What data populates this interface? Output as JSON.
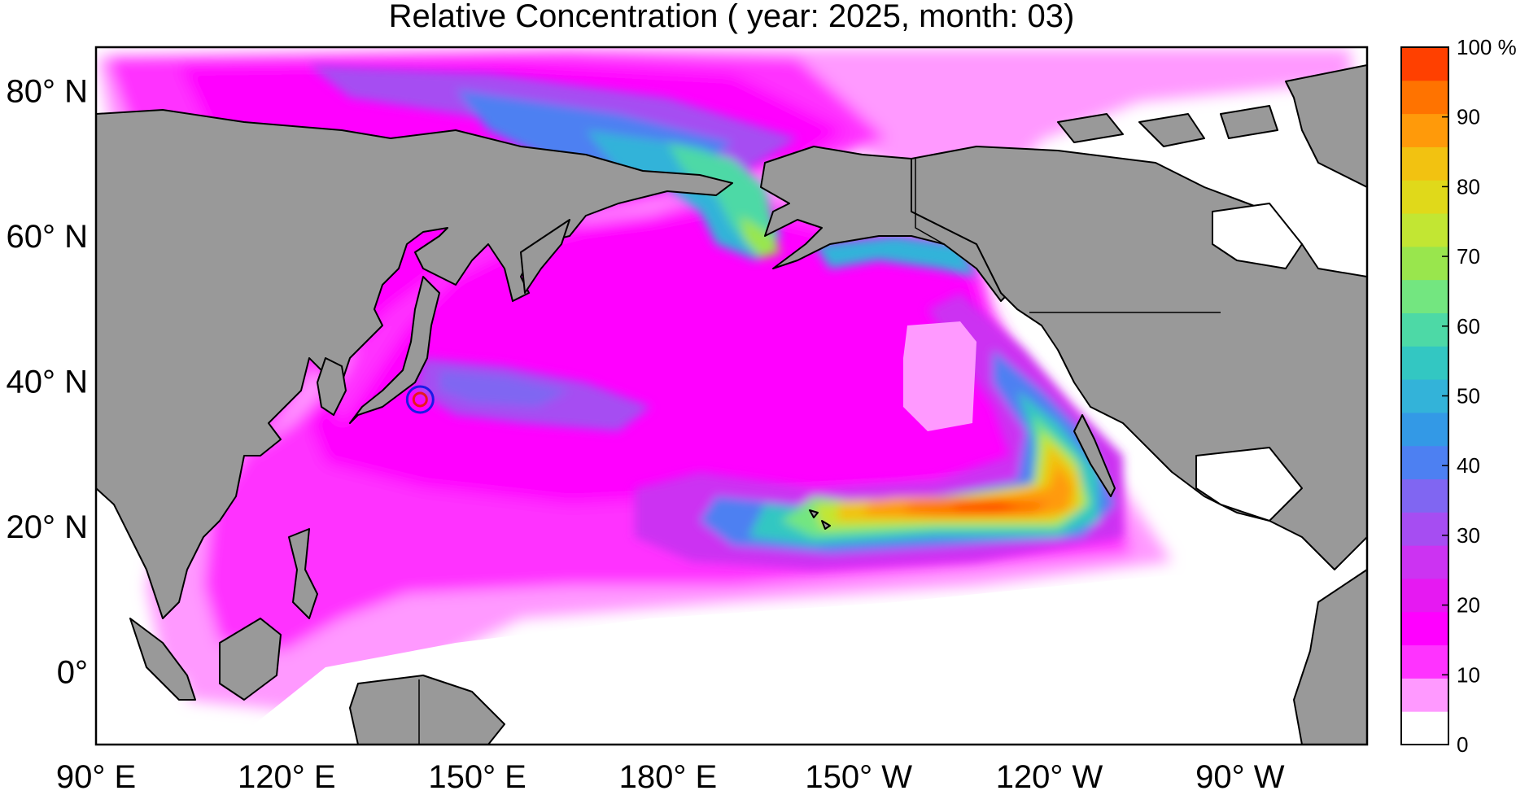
{
  "title": "Relative Concentration ( year: 2025, month: 03)",
  "lat_labels": [
    {
      "text": "80° N",
      "lat": 80
    },
    {
      "text": "60° N",
      "lat": 60
    },
    {
      "text": "40° N",
      "lat": 40
    },
    {
      "text": "20° N",
      "lat": 20
    },
    {
      "text": "0°",
      "lat": 0
    }
  ],
  "lon_labels": [
    {
      "text": "90° E",
      "lon": 90
    },
    {
      "text": "120° E",
      "lon": 120
    },
    {
      "text": "150° E",
      "lon": 150
    },
    {
      "text": "180° E",
      "lon": 180
    },
    {
      "text": "150° W",
      "lon": 210
    },
    {
      "text": "120° W",
      "lon": 240
    },
    {
      "text": "90° W",
      "lon": 270
    }
  ],
  "extent": {
    "lon_min": 90,
    "lon_max": 290,
    "lat_min": -10,
    "lat_max": 86
  },
  "source_marker": {
    "lon": 141,
    "lat": 37.5,
    "outer_color": "#1a1ae6",
    "inner_color": "#e61a1a"
  },
  "colorbar": {
    "ticks": [
      "0",
      "10",
      "20",
      "30",
      "40",
      "50",
      "60",
      "70",
      "80",
      "90",
      "100 %"
    ],
    "colors": [
      "#ffffff",
      "#ff99ff",
      "#ff33ff",
      "#ff00ff",
      "#e619f2",
      "#cc33f2",
      "#a64df2",
      "#8066f2",
      "#4d80f2",
      "#3399e6",
      "#33b3d9",
      "#33c7c2",
      "#4dd9a6",
      "#73e680",
      "#99e64d",
      "#c2e633",
      "#e0d91a",
      "#f2c211",
      "#ff9a0a",
      "#ff7300",
      "#ff4000"
    ]
  },
  "colors": {
    "land": "#999999",
    "coast": "#000000",
    "ocean_zero": "#ffffff"
  }
}
